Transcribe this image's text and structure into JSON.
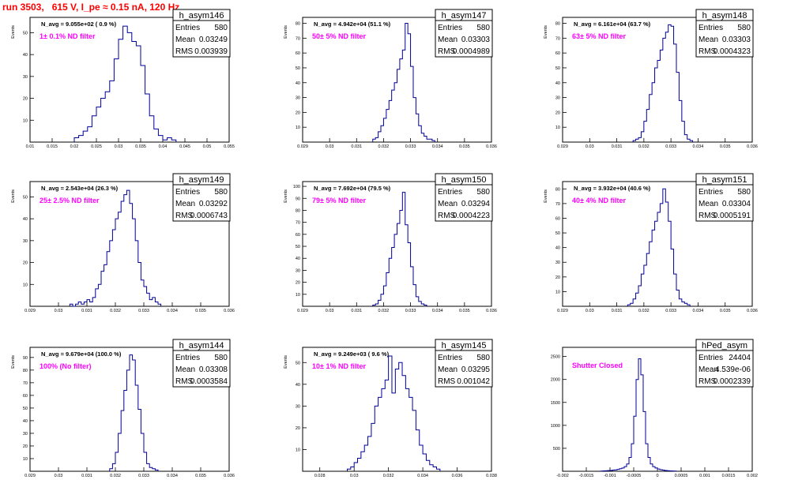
{
  "page_title": "run 3503,   615 V, I_pe ≈ 0.15 nA, 120 Hz",
  "colors": {
    "histogram": "#000099",
    "annotation": "#ff00ff",
    "title": "#ff0000"
  },
  "chart_data": [
    {
      "type": "histogram",
      "name": "h_asym146",
      "stats": {
        "entries_label": "Entries",
        "entries": "580",
        "mean_label": "Mean",
        "mean": "0.03249",
        "rms_label": "RMS",
        "rms": "0.003939"
      },
      "n_avg": "N_avg = 9.055e+02 ( 0.9 %)",
      "filter_label": "1± 0.1% ND filter",
      "xlabel": "",
      "ylabel": "Events",
      "xlim": [
        0.01,
        0.055
      ],
      "ylim": [
        0,
        57
      ],
      "xticks": [
        "0.01",
        "0.015",
        "0.02",
        "0.025",
        "0.03",
        "0.035",
        "0.04",
        "0.045",
        "0.05",
        "0.055"
      ],
      "yticks": [
        "10",
        "20",
        "30",
        "40",
        "50"
      ],
      "x_start": 0.02,
      "bin_width": 0.001,
      "values": [
        2,
        3,
        5,
        7,
        12,
        16,
        20,
        23,
        28,
        38,
        47,
        53,
        50,
        46,
        44,
        35,
        22,
        12,
        6,
        3,
        1,
        2,
        1
      ]
    },
    {
      "type": "histogram",
      "name": "h_asym147",
      "stats": {
        "entries_label": "Entries",
        "entries": "580",
        "mean_label": "Mean",
        "mean": "0.03303",
        "rms_label": "RMS",
        "rms": "0.0004989"
      },
      "n_avg": "N_avg = 4.942e+04 (51.1 %)",
      "filter_label": "50± 5% ND filter",
      "xlabel": "",
      "ylabel": "Events",
      "xlim": [
        0.029,
        0.036
      ],
      "ylim": [
        0,
        84
      ],
      "xticks": [
        "0.029",
        "0.03",
        "0.031",
        "0.032",
        "0.033",
        "0.034",
        "0.035",
        "0.036"
      ],
      "yticks": [
        "10",
        "20",
        "30",
        "40",
        "50",
        "60",
        "70",
        "80"
      ],
      "x_start": 0.0316,
      "bin_width": 0.0001,
      "values": [
        2,
        3,
        7,
        11,
        16,
        22,
        28,
        35,
        40,
        49,
        56,
        62,
        80,
        73,
        51,
        30,
        19,
        11,
        6,
        4,
        2,
        2,
        1
      ]
    },
    {
      "type": "histogram",
      "name": "h_asym148",
      "stats": {
        "entries_label": "Entries",
        "entries": "580",
        "mean_label": "Mean",
        "mean": "0.03303",
        "rms_label": "RMS",
        "rms": "0.0004323"
      },
      "n_avg": "N_avg = 6.161e+04 (63.7 %)",
      "filter_label": "63± 5% ND filter",
      "xlabel": "",
      "ylabel": "Events",
      "xlim": [
        0.029,
        0.036
      ],
      "ylim": [
        0,
        84
      ],
      "xticks": [
        "0.029",
        "0.03",
        "0.031",
        "0.032",
        "0.033",
        "0.034",
        "0.035",
        "0.036"
      ],
      "yticks": [
        "10",
        "20",
        "30",
        "40",
        "50",
        "60",
        "70",
        "80"
      ],
      "x_start": 0.0316,
      "bin_width": 0.0001,
      "values": [
        1,
        2,
        3,
        7,
        14,
        22,
        32,
        40,
        50,
        55,
        62,
        70,
        74,
        79,
        78,
        66,
        47,
        28,
        14,
        5,
        2,
        1
      ]
    },
    {
      "type": "histogram",
      "name": "h_asym149",
      "stats": {
        "entries_label": "Entries",
        "entries": "580",
        "mean_label": "Mean",
        "mean": "0.03292",
        "rms_label": "RMS",
        "rms": "0.0006743"
      },
      "n_avg": "N_avg = 2.543e+04 (26.3 %)",
      "filter_label": "25± 2.5% ND filter",
      "xlabel": "",
      "ylabel": "Events",
      "xlim": [
        0.029,
        0.036
      ],
      "ylim": [
        0,
        57
      ],
      "xticks": [
        "0.029",
        "0.03",
        "0.031",
        "0.032",
        "0.033",
        "0.034",
        "0.035",
        "0.036"
      ],
      "yticks": [
        "10",
        "20",
        "30",
        "40",
        "50"
      ],
      "x_start": 0.0304,
      "bin_width": 0.0001,
      "values": [
        1,
        0,
        1,
        2,
        1,
        2,
        3,
        2,
        4,
        8,
        10,
        16,
        19,
        25,
        30,
        35,
        40,
        43,
        48,
        51,
        53,
        47,
        40,
        30,
        20,
        12,
        9,
        6,
        3,
        4,
        2,
        1
      ]
    },
    {
      "type": "histogram",
      "name": "h_asym150",
      "stats": {
        "entries_label": "Entries",
        "entries": "580",
        "mean_label": "Mean",
        "mean": "0.03294",
        "rms_label": "RMS",
        "rms": "0.0004223"
      },
      "n_avg": "N_avg = 7.692e+04 (79.5 %)",
      "filter_label": "79± 5% ND filter",
      "xlabel": "",
      "ylabel": "Events",
      "xlim": [
        0.029,
        0.036
      ],
      "ylim": [
        0,
        104
      ],
      "xticks": [
        "0.029",
        "0.03",
        "0.031",
        "0.032",
        "0.033",
        "0.034",
        "0.035",
        "0.036"
      ],
      "yticks": [
        "10",
        "20",
        "30",
        "40",
        "50",
        "60",
        "70",
        "80",
        "90",
        "100"
      ],
      "x_start": 0.0316,
      "bin_width": 0.0001,
      "values": [
        1,
        2,
        5,
        10,
        17,
        28,
        40,
        49,
        60,
        69,
        80,
        95,
        68,
        53,
        33,
        18,
        8,
        4,
        2,
        1
      ]
    },
    {
      "type": "histogram",
      "name": "h_asym151",
      "stats": {
        "entries_label": "Entries",
        "entries": "580",
        "mean_label": "Mean",
        "mean": "0.03304",
        "rms_label": "RMS",
        "rms": "0.0005191"
      },
      "n_avg": "N_avg = 3.932e+04 (40.6 %)",
      "filter_label": "40± 4% ND filter",
      "xlabel": "",
      "ylabel": "Events",
      "xlim": [
        0.029,
        0.036
      ],
      "ylim": [
        0,
        85
      ],
      "xticks": [
        "0.029",
        "0.03",
        "0.031",
        "0.032",
        "0.033",
        "0.034",
        "0.035",
        "0.036"
      ],
      "yticks": [
        "10",
        "20",
        "30",
        "40",
        "50",
        "60",
        "70",
        "80"
      ],
      "x_start": 0.0314,
      "bin_width": 0.0001,
      "values": [
        1,
        2,
        5,
        9,
        14,
        22,
        28,
        36,
        44,
        52,
        58,
        64,
        70,
        80,
        71,
        58,
        39,
        22,
        11,
        5,
        3,
        2,
        1
      ]
    },
    {
      "type": "histogram",
      "name": "h_asym144",
      "stats": {
        "entries_label": "Entries",
        "entries": "580",
        "mean_label": "Mean",
        "mean": "0.03308",
        "rms_label": "RMS",
        "rms": "0.0003584"
      },
      "n_avg": "N_avg = 9.679e+04 (100.0 %)",
      "filter_label": "100% (No filter)",
      "xlabel": "",
      "ylabel": "Events",
      "xlim": [
        0.029,
        0.036
      ],
      "ylim": [
        0,
        98
      ],
      "xticks": [
        "0.029",
        "0.03",
        "0.031",
        "0.032",
        "0.033",
        "0.034",
        "0.035",
        "0.036"
      ],
      "yticks": [
        "10",
        "20",
        "30",
        "40",
        "50",
        "60",
        "70",
        "80",
        "90"
      ],
      "x_start": 0.0318,
      "bin_width": 0.0001,
      "values": [
        2,
        6,
        15,
        30,
        48,
        64,
        80,
        92,
        88,
        68,
        49,
        30,
        15,
        6,
        3,
        2,
        1
      ]
    },
    {
      "type": "histogram",
      "name": "h_asym145",
      "stats": {
        "entries_label": "Entries",
        "entries": "580",
        "mean_label": "Mean",
        "mean": "0.03295",
        "rms_label": "RMS",
        "rms": "0.001042"
      },
      "n_avg": "N_avg = 9.249e+03 ( 9.6 %)",
      "filter_label": "10± 1% ND filter",
      "xlabel": "",
      "ylabel": "Events",
      "xlim": [
        0.027,
        0.038
      ],
      "ylim": [
        0,
        57
      ],
      "xticks": [
        "0.028",
        "0.03",
        "0.032",
        "0.034",
        "0.036",
        "0.038"
      ],
      "yticks": [
        "10",
        "20",
        "30",
        "40",
        "50"
      ],
      "x_start": 0.0296,
      "bin_width": 0.0002,
      "values": [
        1,
        2,
        4,
        6,
        9,
        12,
        16,
        22,
        30,
        34,
        38,
        42,
        53,
        36,
        47,
        50,
        44,
        38,
        34,
        28,
        19,
        12,
        8,
        5,
        3,
        2,
        1
      ]
    },
    {
      "type": "histogram",
      "name": "hPed_asym",
      "stats": {
        "entries_label": "Entries",
        "entries": "24404",
        "mean_label": "Mean",
        "mean": "4.539e-06",
        "rms_label": "RMS",
        "rms": "0.0002339"
      },
      "n_avg": "",
      "filter_label": "Shutter Closed",
      "xlabel": "",
      "ylabel": "",
      "xlim": [
        -0.002,
        0.002
      ],
      "ylim": [
        0,
        2700
      ],
      "xticks": [
        "-0.002",
        "-0.0015",
        "-0.001",
        "-0.0005",
        "0",
        "0.0005",
        "0.001",
        "0.0015",
        "0.002"
      ],
      "yticks": [
        "500",
        "1000",
        "1500",
        "2000",
        "2500"
      ],
      "x_start": -0.0012,
      "bin_width": 5e-05,
      "values": [
        5,
        8,
        10,
        14,
        18,
        25,
        30,
        40,
        55,
        70,
        100,
        160,
        300,
        600,
        1200,
        2000,
        2450,
        2100,
        1300,
        600,
        300,
        160,
        100,
        70,
        50,
        35,
        25,
        18,
        12,
        8,
        6,
        4
      ]
    }
  ]
}
